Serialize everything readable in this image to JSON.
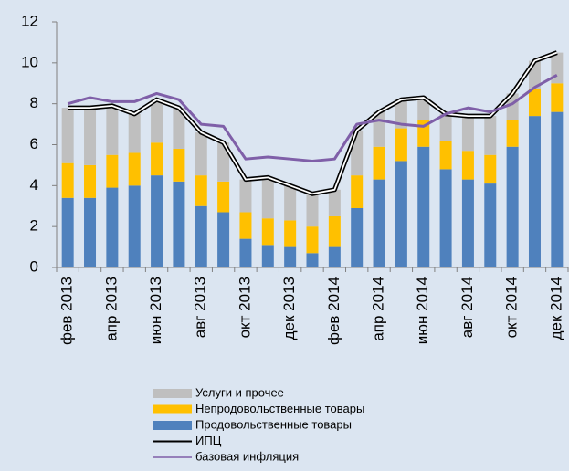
{
  "chart_data": {
    "type": "bar",
    "categories": [
      "фев 2013",
      null,
      "апр 2013",
      null,
      "июн 2013",
      null,
      "авг 2013",
      null,
      "окт 2013",
      null,
      "дек 2013",
      null,
      "фев 2014",
      null,
      "апр 2014",
      null,
      "июн 2014",
      null,
      "авг 2014",
      null,
      "окт 2014",
      null,
      "дек 2014"
    ],
    "series": [
      {
        "name": "Услуги и прочее",
        "type": "bar",
        "color": "#bfbfbf",
        "values": [
          2.7,
          2.8,
          2.4,
          1.9,
          2.1,
          2.0,
          2.1,
          1.9,
          1.6,
          2.0,
          1.7,
          1.6,
          1.3,
          2.2,
          1.7,
          1.4,
          1.1,
          1.3,
          1.7,
          1.9,
          1.3,
          1.4,
          1.5
        ]
      },
      {
        "name": "Непродовольственные товары",
        "type": "bar",
        "color": "#ffc000",
        "values": [
          1.7,
          1.6,
          1.6,
          1.6,
          1.6,
          1.6,
          1.5,
          1.5,
          1.3,
          1.3,
          1.3,
          1.3,
          1.5,
          1.6,
          1.6,
          1.6,
          1.3,
          1.4,
          1.4,
          1.4,
          1.3,
          1.3,
          1.4
        ]
      },
      {
        "name": "Продовольственные товары",
        "type": "bar",
        "color": "#4f81bd",
        "values": [
          3.4,
          3.4,
          3.9,
          4.0,
          4.5,
          4.2,
          3.0,
          2.7,
          1.4,
          1.1,
          1.0,
          0.7,
          1.0,
          2.9,
          4.3,
          5.2,
          5.9,
          4.8,
          4.3,
          4.1,
          5.9,
          7.4,
          7.6
        ]
      },
      {
        "name": "ИПЦ",
        "type": "line",
        "color": "#000000",
        "values": [
          7.8,
          7.8,
          7.9,
          7.5,
          8.2,
          7.8,
          6.6,
          6.1,
          4.3,
          4.4,
          4.0,
          3.6,
          3.8,
          6.7,
          7.6,
          8.2,
          8.3,
          7.5,
          7.4,
          7.4,
          8.5,
          10.1,
          10.5
        ]
      },
      {
        "name": "базовая инфляция",
        "type": "line",
        "color": "#7f5fa8",
        "values": [
          8.0,
          8.3,
          8.1,
          8.1,
          8.5,
          8.2,
          7.0,
          6.9,
          5.3,
          5.4,
          5.3,
          5.2,
          5.3,
          7.0,
          7.2,
          7.0,
          6.9,
          7.5,
          7.8,
          7.6,
          8.0,
          8.8,
          9.4
        ]
      }
    ],
    "ylim": [
      0,
      12
    ],
    "yticks": [
      0,
      2,
      4,
      6,
      8,
      10,
      12
    ]
  }
}
